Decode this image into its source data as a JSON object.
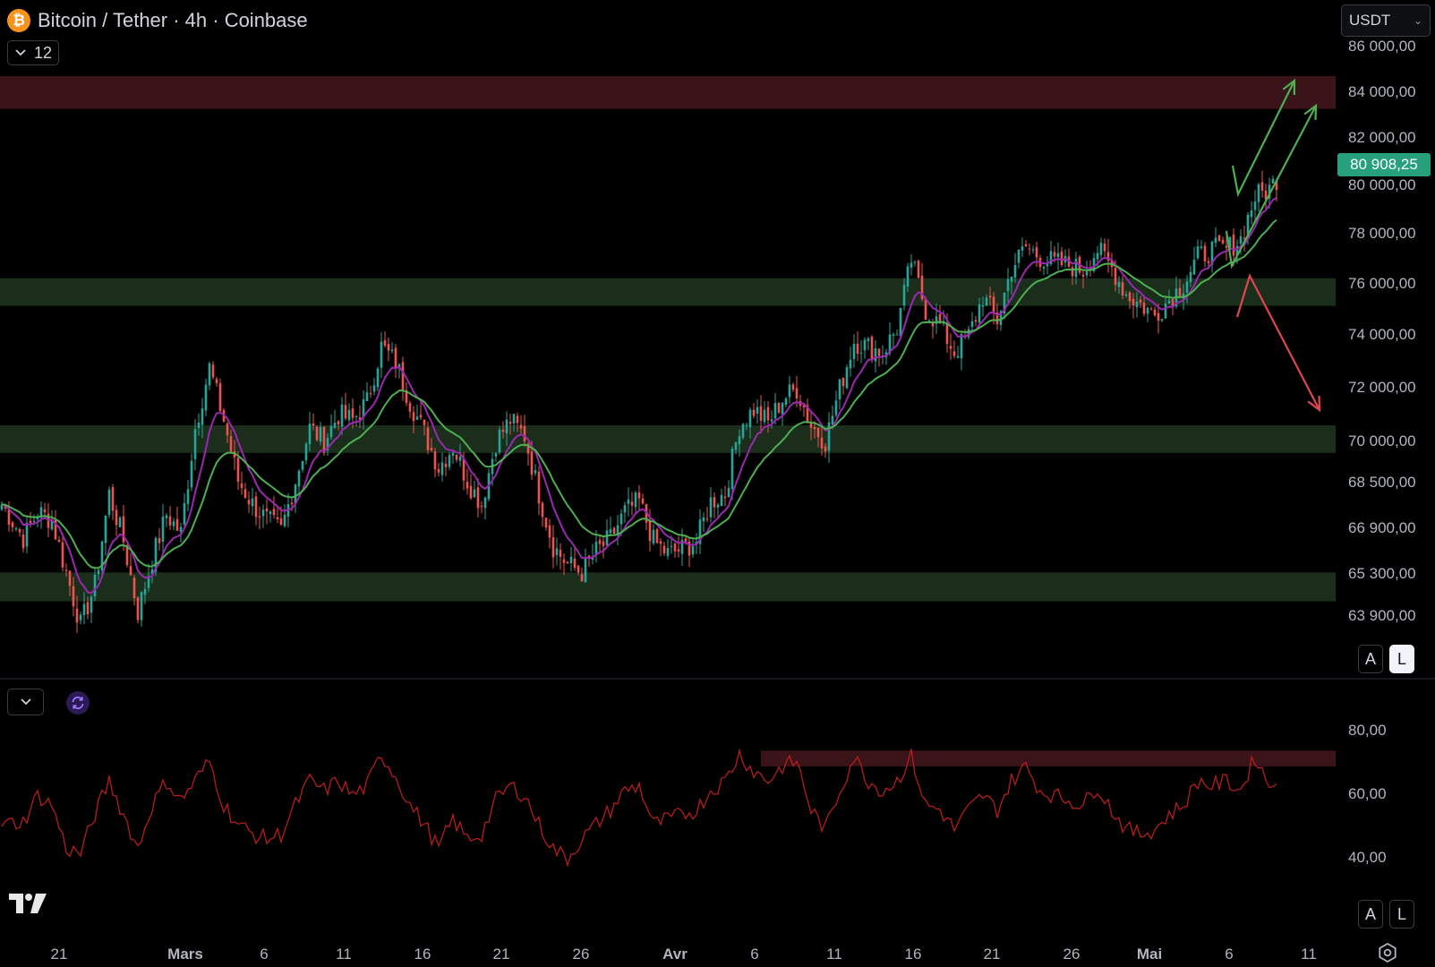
{
  "header": {
    "symbol_icon": "bitcoin-icon",
    "title": "Bitcoin / Tether · 4h · Coinbase",
    "indicators_count": "12",
    "currency": "USDT"
  },
  "price_axis": {
    "labels": [
      "86 000,00",
      "84 000,00",
      "82 000,00",
      "80 000,00",
      "78 000,00",
      "76 000,00",
      "74 000,00",
      "72 000,00",
      "70 000,00",
      "68 500,00",
      "66 900,00",
      "65 300,00",
      "63 900,00"
    ],
    "current_price": "80 908,25"
  },
  "rsi_axis": {
    "labels": [
      "80,00",
      "60,00",
      "40,00"
    ]
  },
  "time_axis": {
    "labels": [
      "21",
      "Mars",
      "6",
      "11",
      "16",
      "21",
      "26",
      "Avr",
      "6",
      "11",
      "16",
      "21",
      "26",
      "Mai",
      "6",
      "11"
    ]
  },
  "scale_buttons": {
    "auto": "A",
    "log": "L"
  },
  "colors": {
    "up": "#26a69a",
    "down": "#ef5350",
    "ma_fast": "#9c27b0",
    "ma_slow": "#4caf50",
    "support_zone": "#1b2e1b",
    "resistance_zone": "#3a1418",
    "rsi_line": "#b71c1c",
    "price_tag": "#26a17b"
  },
  "icons": {
    "collapse": "chevron-down-icon",
    "refresh": "refresh-icon",
    "logo": "tradingview-logo",
    "settings": "gear-icon"
  },
  "chart_data": {
    "type": "candlestick",
    "timeframe": "4h",
    "y_scale": "linear",
    "ylim": [
      62500,
      86500
    ],
    "close_path": [
      [
        0,
        68600
      ],
      [
        6,
        67300
      ],
      [
        10,
        68300
      ],
      [
        14,
        68000
      ],
      [
        18,
        66000
      ],
      [
        22,
        64000
      ],
      [
        26,
        65500
      ],
      [
        30,
        69000
      ],
      [
        34,
        67200
      ],
      [
        38,
        64500
      ],
      [
        42,
        66500
      ],
      [
        46,
        68200
      ],
      [
        50,
        67500
      ],
      [
        54,
        71500
      ],
      [
        58,
        73800
      ],
      [
        62,
        71800
      ],
      [
        66,
        69500
      ],
      [
        70,
        68600
      ],
      [
        74,
        68000
      ],
      [
        78,
        67600
      ],
      [
        82,
        69500
      ],
      [
        86,
        71500
      ],
      [
        90,
        71000
      ],
      [
        94,
        72000
      ],
      [
        98,
        71800
      ],
      [
        102,
        72500
      ],
      [
        106,
        74600
      ],
      [
        110,
        74000
      ],
      [
        114,
        72500
      ],
      [
        118,
        71300
      ],
      [
        122,
        70000
      ],
      [
        126,
        70800
      ],
      [
        130,
        69500
      ],
      [
        134,
        68600
      ],
      [
        138,
        71000
      ],
      [
        142,
        71800
      ],
      [
        146,
        71200
      ],
      [
        150,
        69000
      ],
      [
        154,
        67000
      ],
      [
        158,
        66300
      ],
      [
        162,
        66000
      ],
      [
        166,
        66800
      ],
      [
        170,
        67300
      ],
      [
        174,
        68300
      ],
      [
        178,
        68700
      ],
      [
        182,
        67200
      ],
      [
        186,
        66700
      ],
      [
        190,
        66900
      ],
      [
        194,
        67200
      ],
      [
        198,
        68700
      ],
      [
        202,
        69000
      ],
      [
        206,
        71600
      ],
      [
        210,
        72200
      ],
      [
        214,
        71700
      ],
      [
        218,
        72600
      ],
      [
        222,
        73000
      ],
      [
        226,
        71600
      ],
      [
        230,
        71000
      ],
      [
        234,
        73000
      ],
      [
        238,
        74800
      ],
      [
        242,
        74600
      ],
      [
        246,
        74400
      ],
      [
        250,
        75300
      ],
      [
        254,
        77900
      ],
      [
        258,
        76000
      ],
      [
        262,
        75400
      ],
      [
        266,
        74400
      ],
      [
        270,
        75000
      ],
      [
        274,
        76500
      ],
      [
        278,
        75600
      ],
      [
        282,
        77600
      ],
      [
        286,
        78400
      ],
      [
        290,
        78000
      ],
      [
        294,
        77800
      ],
      [
        298,
        77700
      ],
      [
        302,
        77500
      ],
      [
        306,
        78300
      ],
      [
        310,
        77600
      ],
      [
        314,
        76600
      ],
      [
        318,
        76200
      ],
      [
        322,
        75800
      ],
      [
        326,
        76400
      ],
      [
        330,
        77000
      ],
      [
        334,
        78000
      ],
      [
        338,
        78300
      ],
      [
        342,
        78300
      ],
      [
        346,
        78700
      ],
      [
        350,
        80300
      ],
      [
        354,
        80600
      ],
      [
        356,
        81000
      ]
    ],
    "candle_count": 357,
    "moving_averages": [
      {
        "type": "fast",
        "color": "#9c27b0"
      },
      {
        "type": "slow",
        "color": "#4caf50"
      }
    ],
    "zones": [
      {
        "kind": "resistance",
        "low": 83650,
        "high": 84900
      },
      {
        "kind": "support",
        "low": 76150,
        "high": 77200
      },
      {
        "kind": "support",
        "low": 70550,
        "high": 71600
      },
      {
        "kind": "support",
        "low": 64900,
        "high": 66000
      }
    ],
    "drawings": [
      {
        "kind": "arrow",
        "color": "green",
        "from": [
          80300,
          79600
        ],
        "via": [
          82000,
          79600
        ],
        "to": [
          83200,
          84500
        ]
      },
      {
        "kind": "arrow",
        "color": "green",
        "from": [
          82000,
          79600
        ],
        "to": [
          84000,
          83400
        ]
      },
      {
        "kind": "arrow",
        "color": "red",
        "from": [
          84500,
          74300
        ],
        "via": [
          85100,
          75600
        ],
        "to": [
          87000,
          71000
        ]
      }
    ],
    "rsi": {
      "ylim": [
        25,
        85
      ],
      "overbought_zone": [
        68,
        74.5
      ],
      "path": [
        [
          0,
          44
        ],
        [
          6,
          45
        ],
        [
          10,
          56
        ],
        [
          14,
          52
        ],
        [
          18,
          34
        ],
        [
          22,
          32
        ],
        [
          26,
          48
        ],
        [
          30,
          62
        ],
        [
          34,
          48
        ],
        [
          38,
          34
        ],
        [
          42,
          52
        ],
        [
          46,
          62
        ],
        [
          50,
          54
        ],
        [
          54,
          62
        ],
        [
          58,
          70
        ],
        [
          62,
          52
        ],
        [
          66,
          44
        ],
        [
          70,
          40
        ],
        [
          74,
          38
        ],
        [
          78,
          40
        ],
        [
          82,
          52
        ],
        [
          86,
          62
        ],
        [
          90,
          58
        ],
        [
          94,
          62
        ],
        [
          98,
          56
        ],
        [
          102,
          60
        ],
        [
          106,
          73
        ],
        [
          110,
          64
        ],
        [
          114,
          52
        ],
        [
          118,
          44
        ],
        [
          122,
          34
        ],
        [
          126,
          46
        ],
        [
          130,
          38
        ],
        [
          134,
          40
        ],
        [
          138,
          54
        ],
        [
          142,
          60
        ],
        [
          146,
          56
        ],
        [
          150,
          44
        ],
        [
          154,
          34
        ],
        [
          158,
          30
        ],
        [
          162,
          38
        ],
        [
          166,
          44
        ],
        [
          170,
          50
        ],
        [
          174,
          58
        ],
        [
          178,
          60
        ],
        [
          182,
          44
        ],
        [
          186,
          46
        ],
        [
          190,
          48
        ],
        [
          194,
          50
        ],
        [
          198,
          58
        ],
        [
          202,
          62
        ],
        [
          206,
          73
        ],
        [
          210,
          66
        ],
        [
          214,
          62
        ],
        [
          218,
          68
        ],
        [
          222,
          70
        ],
        [
          226,
          50
        ],
        [
          230,
          42
        ],
        [
          234,
          58
        ],
        [
          238,
          72
        ],
        [
          242,
          62
        ],
        [
          246,
          58
        ],
        [
          250,
          62
        ],
        [
          254,
          72
        ],
        [
          258,
          52
        ],
        [
          262,
          50
        ],
        [
          266,
          42
        ],
        [
          270,
          50
        ],
        [
          274,
          56
        ],
        [
          278,
          50
        ],
        [
          282,
          62
        ],
        [
          286,
          68
        ],
        [
          290,
          58
        ],
        [
          294,
          56
        ],
        [
          298,
          54
        ],
        [
          302,
          52
        ],
        [
          306,
          60
        ],
        [
          310,
          50
        ],
        [
          314,
          42
        ],
        [
          318,
          40
        ],
        [
          322,
          42
        ],
        [
          326,
          48
        ],
        [
          330,
          52
        ],
        [
          334,
          62
        ],
        [
          338,
          60
        ],
        [
          342,
          62
        ],
        [
          346,
          58
        ],
        [
          350,
          72
        ],
        [
          354,
          60
        ],
        [
          356,
          64
        ]
      ]
    }
  }
}
